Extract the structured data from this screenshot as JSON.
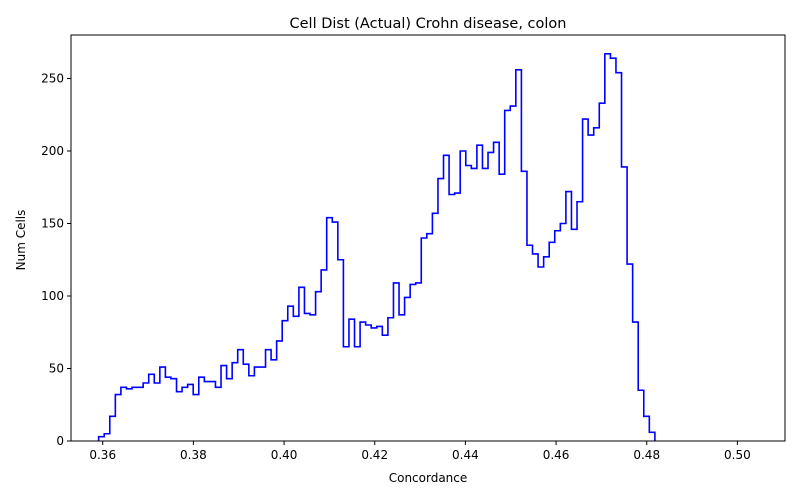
{
  "chart_data": {
    "type": "histogram",
    "title": "Cell Dist (Actual) Crohn disease, colon",
    "xlabel": "Concordance",
    "ylabel": "Num Cells",
    "xlim": [
      0.353,
      0.5105
    ],
    "ylim": [
      0,
      280
    ],
    "xticks": [
      0.36,
      0.38,
      0.4,
      0.42,
      0.44,
      0.46,
      0.48,
      0.5
    ],
    "xtick_labels": [
      "0.36",
      "0.38",
      "0.40",
      "0.42",
      "0.44",
      "0.46",
      "0.48",
      "0.50"
    ],
    "yticks": [
      0,
      50,
      100,
      150,
      200,
      250
    ],
    "ytick_labels": [
      "0",
      "50",
      "100",
      "150",
      "200",
      "250"
    ],
    "grid": false,
    "legend": "none",
    "color": "#0000ff",
    "bin_start": 0.3591,
    "bin_width": 0.001227,
    "counts": [
      3,
      5,
      17,
      32,
      37,
      36,
      37,
      37,
      40,
      46,
      40,
      51,
      44,
      43,
      34,
      37,
      39,
      32,
      44,
      41,
      41,
      37,
      52,
      43,
      54,
      63,
      53,
      45,
      51,
      51,
      63,
      56,
      69,
      83,
      93,
      86,
      106,
      88,
      87,
      103,
      118,
      154,
      151,
      125,
      65,
      84,
      65,
      82,
      80,
      78,
      79,
      73,
      85,
      109,
      87,
      99,
      108,
      109,
      140,
      143,
      157,
      181,
      197,
      170,
      171,
      200,
      190,
      188,
      204,
      188,
      199,
      206,
      184,
      228,
      231,
      256,
      186,
      135,
      129,
      120,
      127,
      137,
      145,
      150,
      172,
      146,
      165,
      222,
      211,
      216,
      233,
      267,
      264,
      254,
      189,
      122,
      82,
      35,
      17,
      6
    ]
  }
}
